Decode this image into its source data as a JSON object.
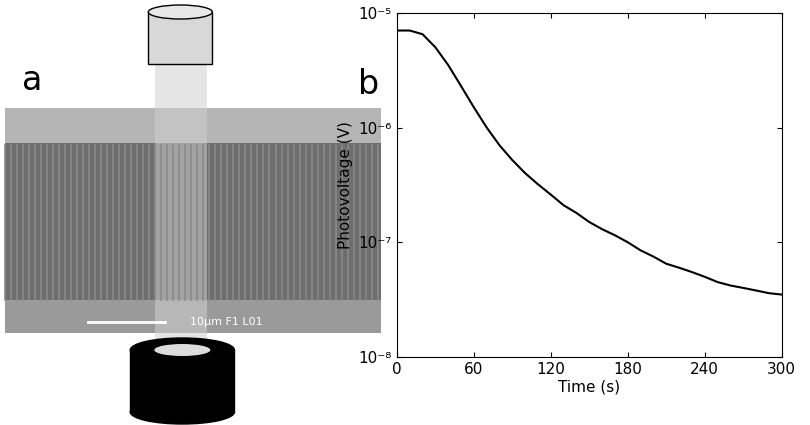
{
  "schematic": {
    "panel_label": "a",
    "scale_bar_text": "10μm F1 L01"
  },
  "chart_data": {
    "type": "line",
    "panel_label": "b",
    "x_label": "Time (s)",
    "y_label": "Photovoltage (V)",
    "x": [
      0,
      10,
      20,
      30,
      40,
      50,
      60,
      70,
      80,
      90,
      100,
      110,
      120,
      130,
      140,
      150,
      160,
      170,
      180,
      190,
      200,
      210,
      220,
      230,
      240,
      250,
      260,
      270,
      280,
      290,
      300
    ],
    "values": [
      7e-06,
      7e-06,
      6.5e-06,
      5e-06,
      3.5e-06,
      2.3e-06,
      1.5e-06,
      1e-06,
      7e-07,
      5.2e-07,
      4e-07,
      3.2e-07,
      2.6e-07,
      2.1e-07,
      1.8e-07,
      1.5e-07,
      1.3e-07,
      1.15e-07,
      1e-07,
      8.5e-08,
      7.5e-08,
      6.5e-08,
      6e-08,
      5.5e-08,
      5e-08,
      4.5e-08,
      4.2e-08,
      4e-08,
      3.8e-08,
      3.6e-08,
      3.5e-08
    ],
    "color": "#000000",
    "log": "y",
    "xlim": [
      0,
      300
    ],
    "xticks": [
      0,
      60,
      120,
      180,
      240,
      300
    ],
    "ylim": [
      1e-08,
      1e-05
    ],
    "yticks": [
      {
        "value": 1e-08,
        "label": "10⁻⁸"
      },
      {
        "value": 1e-07,
        "label": "10⁻⁷"
      },
      {
        "value": 1e-06,
        "label": "10⁻⁶"
      },
      {
        "value": 1e-05,
        "label": "10⁻⁵"
      }
    ]
  }
}
